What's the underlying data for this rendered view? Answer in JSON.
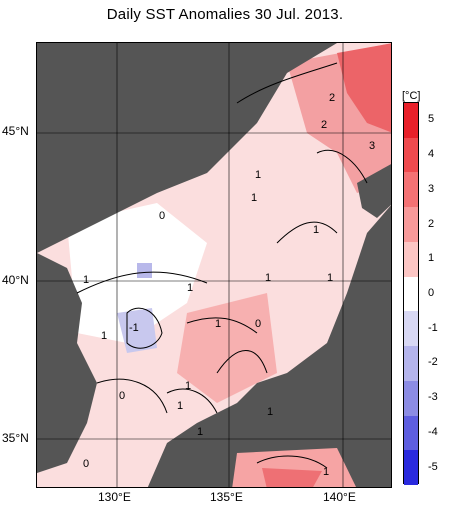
{
  "title": "Daily SST Anomalies 30 Jul. 2013.",
  "lat_labels": [
    "45°N",
    "40°N",
    "35°N"
  ],
  "lon_labels": [
    "130°E",
    "135°E",
    "140°E"
  ],
  "colorbar": {
    "unit": "[°C]",
    "ticks": [
      "5",
      "4",
      "3",
      "2",
      "1",
      "0",
      "-1",
      "-2",
      "-3",
      "-4",
      "-5"
    ],
    "colors": [
      "#e8202a",
      "#ef4a4e",
      "#f47274",
      "#f89a9a",
      "#fcc6c4",
      "#ffffff",
      "#d8d8f4",
      "#b4b4ec",
      "#8c8ce4",
      "#5e5ee0",
      "#2a2ade"
    ]
  },
  "contour_labels": [
    "2",
    "2",
    "3",
    "1",
    "1",
    "0",
    "1",
    "1",
    "1",
    "1",
    "1",
    "0",
    "1",
    "1",
    "-1",
    "1",
    "0",
    "1",
    "1",
    "0",
    "1",
    "1",
    "2"
  ],
  "colors": {
    "land": "#555555",
    "sea_neutral": "#ffffff"
  }
}
